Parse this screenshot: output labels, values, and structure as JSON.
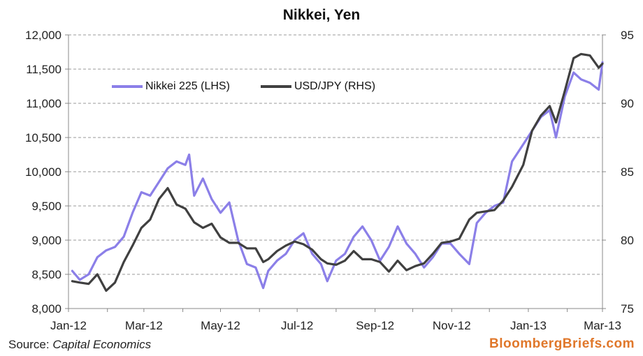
{
  "chart_data": {
    "type": "line",
    "title": "Nikkei, Yen",
    "x_tick_labels": [
      "Jan-12",
      "Mar-12",
      "May-12",
      "Jul-12",
      "Sep-12",
      "Nov-12",
      "Jan-13",
      "Mar-13"
    ],
    "y_left": {
      "min": 8000,
      "max": 12000,
      "step": 500,
      "tick_labels": [
        "8,000",
        "8,500",
        "9,000",
        "9,500",
        "10,000",
        "10,500",
        "11,000",
        "11,500",
        "12,000"
      ]
    },
    "y_right": {
      "min": 75,
      "max": 95,
      "step": 5,
      "tick_labels": [
        "75",
        "80",
        "85",
        "90",
        "95"
      ]
    },
    "grid": "horizontal dashed",
    "legend_placement": "top-left",
    "series": [
      {
        "name": "Nikkei 225 (LHS)",
        "axis": "left",
        "color": "#8b7fe8",
        "points": [
          [
            "2012-01-04",
            8550
          ],
          [
            "2012-01-10",
            8420
          ],
          [
            "2012-01-17",
            8500
          ],
          [
            "2012-01-24",
            8750
          ],
          [
            "2012-01-31",
            8850
          ],
          [
            "2012-02-07",
            8900
          ],
          [
            "2012-02-14",
            9050
          ],
          [
            "2012-02-21",
            9400
          ],
          [
            "2012-02-28",
            9700
          ],
          [
            "2012-03-06",
            9650
          ],
          [
            "2012-03-13",
            9850
          ],
          [
            "2012-03-20",
            10050
          ],
          [
            "2012-03-27",
            10150
          ],
          [
            "2012-04-03",
            10100
          ],
          [
            "2012-04-06",
            10250
          ],
          [
            "2012-04-10",
            9650
          ],
          [
            "2012-04-17",
            9900
          ],
          [
            "2012-04-24",
            9600
          ],
          [
            "2012-05-01",
            9400
          ],
          [
            "2012-05-08",
            9550
          ],
          [
            "2012-05-15",
            9000
          ],
          [
            "2012-05-22",
            8650
          ],
          [
            "2012-05-29",
            8600
          ],
          [
            "2012-06-04",
            8300
          ],
          [
            "2012-06-08",
            8550
          ],
          [
            "2012-06-15",
            8700
          ],
          [
            "2012-06-22",
            8800
          ],
          [
            "2012-06-29",
            9000
          ],
          [
            "2012-07-06",
            9100
          ],
          [
            "2012-07-13",
            8800
          ],
          [
            "2012-07-20",
            8650
          ],
          [
            "2012-07-25",
            8400
          ],
          [
            "2012-08-01",
            8700
          ],
          [
            "2012-08-08",
            8800
          ],
          [
            "2012-08-15",
            9050
          ],
          [
            "2012-08-22",
            9200
          ],
          [
            "2012-08-29",
            9000
          ],
          [
            "2012-09-05",
            8700
          ],
          [
            "2012-09-12",
            8900
          ],
          [
            "2012-09-19",
            9200
          ],
          [
            "2012-09-26",
            8950
          ],
          [
            "2012-10-03",
            8800
          ],
          [
            "2012-10-10",
            8600
          ],
          [
            "2012-10-17",
            8750
          ],
          [
            "2012-10-24",
            8950
          ],
          [
            "2012-10-31",
            8950
          ],
          [
            "2012-11-07",
            8800
          ],
          [
            "2012-11-15",
            8650
          ],
          [
            "2012-11-21",
            9250
          ],
          [
            "2012-11-28",
            9400
          ],
          [
            "2012-12-05",
            9500
          ],
          [
            "2012-12-12",
            9550
          ],
          [
            "2012-12-19",
            10150
          ],
          [
            "2012-12-28",
            10400
          ],
          [
            "2013-01-04",
            10600
          ],
          [
            "2013-01-11",
            10800
          ],
          [
            "2013-01-18",
            10900
          ],
          [
            "2013-01-23",
            10500
          ],
          [
            "2013-01-30",
            11100
          ],
          [
            "2013-02-06",
            11450
          ],
          [
            "2013-02-12",
            11350
          ],
          [
            "2013-02-19",
            11300
          ],
          [
            "2013-02-26",
            11200
          ],
          [
            "2013-03-01",
            11600
          ]
        ]
      },
      {
        "name": "USD/JPY (RHS)",
        "axis": "right",
        "color": "#404040",
        "points": [
          [
            "2012-01-04",
            77.0
          ],
          [
            "2012-01-10",
            76.9
          ],
          [
            "2012-01-17",
            76.8
          ],
          [
            "2012-01-24",
            77.5
          ],
          [
            "2012-01-31",
            76.3
          ],
          [
            "2012-02-07",
            76.9
          ],
          [
            "2012-02-14",
            78.4
          ],
          [
            "2012-02-21",
            79.6
          ],
          [
            "2012-02-28",
            80.9
          ],
          [
            "2012-03-06",
            81.5
          ],
          [
            "2012-03-13",
            83.0
          ],
          [
            "2012-03-20",
            83.8
          ],
          [
            "2012-03-27",
            82.6
          ],
          [
            "2012-04-03",
            82.3
          ],
          [
            "2012-04-10",
            81.3
          ],
          [
            "2012-04-17",
            80.9
          ],
          [
            "2012-04-24",
            81.2
          ],
          [
            "2012-05-01",
            80.2
          ],
          [
            "2012-05-08",
            79.8
          ],
          [
            "2012-05-15",
            79.8
          ],
          [
            "2012-05-22",
            79.4
          ],
          [
            "2012-05-29",
            79.4
          ],
          [
            "2012-06-04",
            78.4
          ],
          [
            "2012-06-08",
            78.6
          ],
          [
            "2012-06-15",
            79.2
          ],
          [
            "2012-06-22",
            79.6
          ],
          [
            "2012-06-29",
            79.9
          ],
          [
            "2012-07-06",
            79.7
          ],
          [
            "2012-07-13",
            79.3
          ],
          [
            "2012-07-20",
            78.6
          ],
          [
            "2012-07-25",
            78.3
          ],
          [
            "2012-08-01",
            78.2
          ],
          [
            "2012-08-08",
            78.5
          ],
          [
            "2012-08-15",
            79.2
          ],
          [
            "2012-08-22",
            78.6
          ],
          [
            "2012-08-29",
            78.6
          ],
          [
            "2012-09-05",
            78.4
          ],
          [
            "2012-09-12",
            77.7
          ],
          [
            "2012-09-19",
            78.5
          ],
          [
            "2012-09-26",
            77.8
          ],
          [
            "2012-10-03",
            78.1
          ],
          [
            "2012-10-10",
            78.3
          ],
          [
            "2012-10-17",
            79.0
          ],
          [
            "2012-10-24",
            79.8
          ],
          [
            "2012-10-31",
            79.9
          ],
          [
            "2012-11-07",
            80.1
          ],
          [
            "2012-11-15",
            81.5
          ],
          [
            "2012-11-21",
            82.0
          ],
          [
            "2012-11-28",
            82.1
          ],
          [
            "2012-12-05",
            82.2
          ],
          [
            "2012-12-12",
            82.9
          ],
          [
            "2012-12-19",
            83.9
          ],
          [
            "2012-12-28",
            85.5
          ],
          [
            "2013-01-04",
            88.0
          ],
          [
            "2013-01-11",
            89.1
          ],
          [
            "2013-01-18",
            89.8
          ],
          [
            "2013-01-23",
            88.6
          ],
          [
            "2013-01-30",
            90.9
          ],
          [
            "2013-02-06",
            93.3
          ],
          [
            "2013-02-12",
            93.6
          ],
          [
            "2013-02-19",
            93.5
          ],
          [
            "2013-02-26",
            92.6
          ],
          [
            "2013-03-01",
            92.9
          ]
        ]
      }
    ]
  },
  "footer": {
    "source_prefix": "Source: ",
    "source_name": "Capital Economics",
    "brand": "BloombergBriefs.com"
  }
}
